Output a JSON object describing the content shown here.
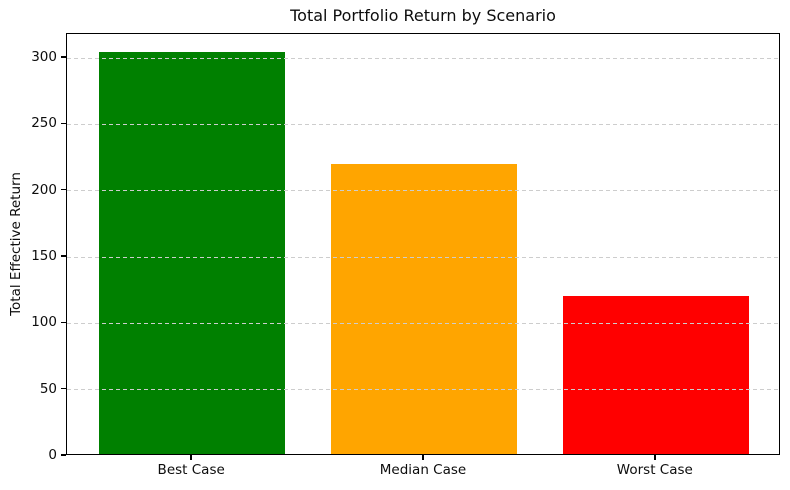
{
  "chart_data": {
    "type": "bar",
    "title": "Total Portfolio Return by Scenario",
    "xlabel": "",
    "ylabel": "Total Effective Return",
    "categories": [
      "Best Case",
      "Median Case",
      "Worst Case"
    ],
    "values": [
      303,
      219,
      119
    ],
    "bar_colors": [
      "#008000",
      "#ffa500",
      "#ff0000"
    ],
    "bar_color_names": [
      "green",
      "orange",
      "red"
    ],
    "x_positions": [
      0,
      1,
      2
    ],
    "xlim": [
      -0.54,
      2.54
    ],
    "bar_width": 0.8,
    "ylim": [
      0,
      318.2
    ],
    "yticks": [
      0,
      50,
      100,
      150,
      200,
      250,
      300
    ],
    "grid": true,
    "grid_axis": "y",
    "grid_style": "dashed",
    "grid_color": "#cdcdcd",
    "grid_above_bars": true,
    "spine_color": "#000000",
    "background_color": "#ffffff",
    "legend_position": "none"
  }
}
